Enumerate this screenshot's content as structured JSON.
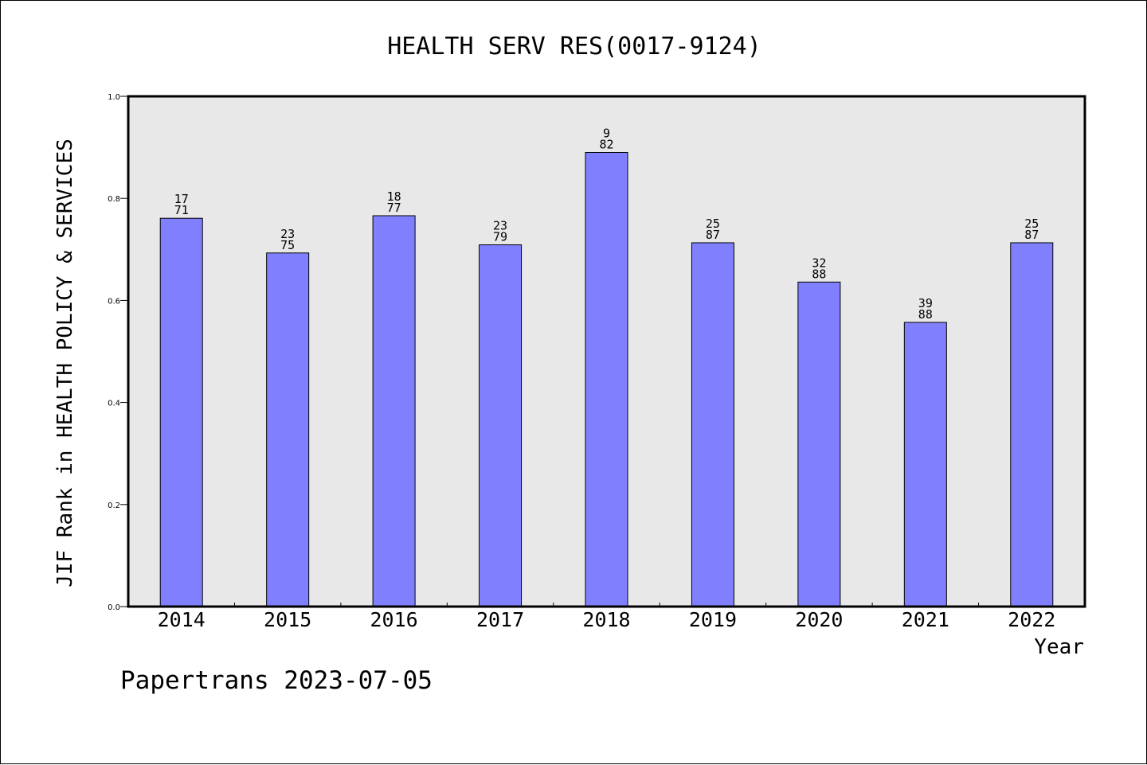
{
  "footer": {
    "text": "Papertrans 2023-07-05"
  },
  "chart_data": {
    "type": "bar",
    "title": "HEALTH SERV RES(0017-9124)",
    "xlabel": "Year",
    "ylabel": "JIF Rank in HEALTH POLICY & SERVICES",
    "ylim": [
      0,
      1.0
    ],
    "yticks": [
      "0.0",
      "0.2",
      "0.4",
      "0.6",
      "0.8",
      "1.0"
    ],
    "categories": [
      "2014",
      "2015",
      "2016",
      "2017",
      "2018",
      "2019",
      "2020",
      "2021",
      "2022"
    ],
    "values": [
      0.761,
      0.693,
      0.766,
      0.709,
      0.89,
      0.713,
      0.636,
      0.557,
      0.713
    ],
    "rank_labels": [
      [
        "17",
        "71"
      ],
      [
        "23",
        "75"
      ],
      [
        "18",
        "77"
      ],
      [
        "23",
        "79"
      ],
      [
        "9",
        "82"
      ],
      [
        "25",
        "87"
      ],
      [
        "32",
        "88"
      ],
      [
        "39",
        "88"
      ],
      [
        "25",
        "87"
      ]
    ],
    "colors": {
      "bar": "#8080ff",
      "plot_bg": "#e8e8e8",
      "axis": "#000000"
    },
    "grid": false,
    "legend": "none"
  }
}
